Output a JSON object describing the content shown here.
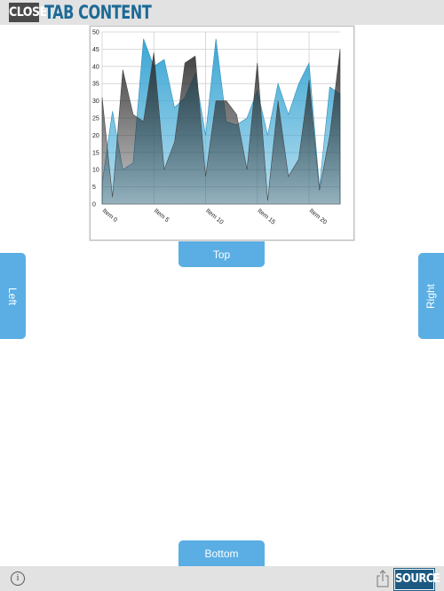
{
  "header": {
    "close": "CLOSE",
    "title": "TAB CONTENT"
  },
  "chart": {
    "type": "area",
    "categories": [
      "Item 0",
      null,
      null,
      null,
      null,
      "Item 5",
      null,
      null,
      null,
      null,
      "Item 10",
      null,
      null,
      null,
      null,
      "Item 15",
      null,
      null,
      null,
      null,
      "Item 20",
      null,
      null,
      null
    ],
    "series": [
      {
        "color": "#3aa6d4",
        "values": [
          6,
          27,
          10,
          12,
          48,
          40,
          42,
          28,
          31,
          38,
          20,
          48,
          24,
          23,
          25,
          33,
          20,
          35,
          26,
          35,
          41,
          5,
          34,
          32
        ]
      },
      {
        "color": "#2a2a2a",
        "values": [
          31,
          2,
          39,
          26,
          24,
          44,
          10,
          18,
          41,
          43,
          8,
          30,
          30,
          26,
          10,
          41,
          1,
          30,
          8,
          13,
          36,
          4,
          20,
          45
        ]
      }
    ],
    "ylim": [
      0,
      50
    ],
    "yticks": [
      0,
      5,
      10,
      15,
      20,
      25,
      30,
      35,
      40,
      45,
      50
    ],
    "grid": true
  },
  "buttons": {
    "top": "Top",
    "left": "Left",
    "right": "Right",
    "bottom": "Bottom"
  },
  "footer": {
    "info": "i",
    "source": "SOURCE"
  }
}
